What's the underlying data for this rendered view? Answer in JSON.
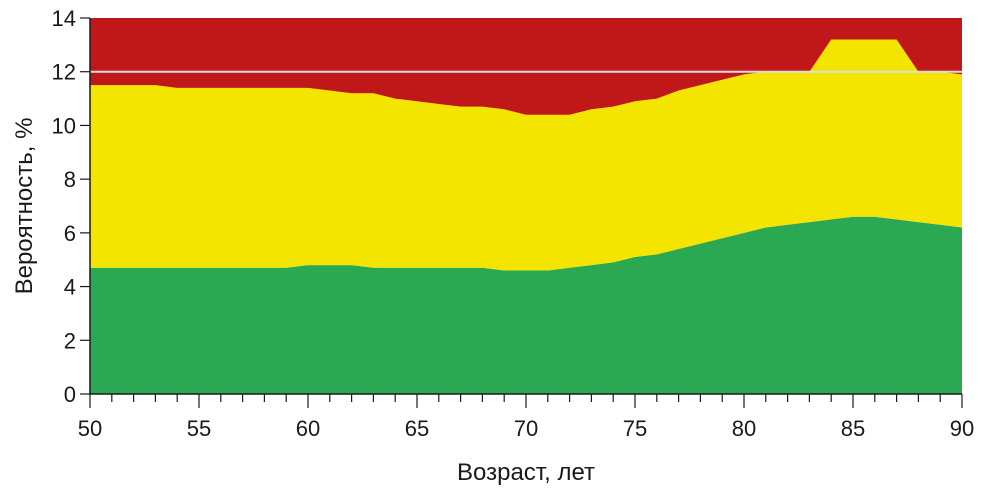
{
  "chart_data": {
    "type": "area",
    "stacked": true,
    "title": "",
    "xlabel": "Возраст, лет",
    "ylabel": "Вероятность, %",
    "xlim": [
      50,
      90
    ],
    "ylim": [
      0,
      14
    ],
    "xticks": [
      50,
      55,
      60,
      65,
      70,
      75,
      80,
      85,
      90
    ],
    "yticks": [
      0,
      2,
      4,
      6,
      8,
      10,
      12,
      14
    ],
    "grid": false,
    "legend": "none",
    "reference_line": {
      "y": 12,
      "color": "#dddddd"
    },
    "x": [
      50,
      51,
      52,
      53,
      54,
      55,
      56,
      57,
      58,
      59,
      60,
      61,
      62,
      63,
      64,
      65,
      66,
      67,
      68,
      69,
      70,
      71,
      72,
      73,
      74,
      75,
      76,
      77,
      78,
      79,
      80,
      81,
      82,
      83,
      84,
      85,
      86,
      87,
      88,
      89,
      90
    ],
    "series": [
      {
        "color": "#2aa852",
        "values": [
          4.7,
          4.7,
          4.7,
          4.7,
          4.7,
          4.7,
          4.7,
          4.7,
          4.7,
          4.7,
          4.8,
          4.8,
          4.8,
          4.7,
          4.7,
          4.7,
          4.7,
          4.7,
          4.7,
          4.6,
          4.6,
          4.6,
          4.7,
          4.8,
          4.9,
          5.1,
          5.2,
          5.4,
          5.6,
          5.8,
          6.0,
          6.2,
          6.3,
          6.4,
          6.5,
          6.6,
          6.6,
          6.5,
          6.4,
          6.3,
          6.2
        ]
      },
      {
        "color": "#f4e500",
        "values": [
          6.8,
          6.8,
          6.8,
          6.8,
          6.7,
          6.7,
          6.7,
          6.7,
          6.7,
          6.7,
          6.6,
          6.5,
          6.4,
          6.5,
          6.3,
          6.2,
          6.1,
          6.0,
          6.0,
          6.0,
          5.8,
          5.8,
          5.7,
          5.8,
          5.8,
          5.8,
          5.8,
          5.9,
          5.9,
          5.9,
          5.9,
          5.8,
          5.7,
          5.6,
          6.7,
          6.6,
          6.6,
          6.7,
          5.6,
          5.7,
          5.7
        ]
      },
      {
        "color": "#c01818",
        "values": [
          2.5,
          2.5,
          2.5,
          2.5,
          2.6,
          2.6,
          2.6,
          2.6,
          2.6,
          2.6,
          2.6,
          2.7,
          2.8,
          2.8,
          3.0,
          3.1,
          3.2,
          3.3,
          3.3,
          3.4,
          3.6,
          3.6,
          3.6,
          3.4,
          3.3,
          3.1,
          3.0,
          2.7,
          2.5,
          2.3,
          2.1,
          2.0,
          2.0,
          2.0,
          0.8,
          0.8,
          0.8,
          0.8,
          2.0,
          2.0,
          2.1
        ]
      }
    ]
  }
}
